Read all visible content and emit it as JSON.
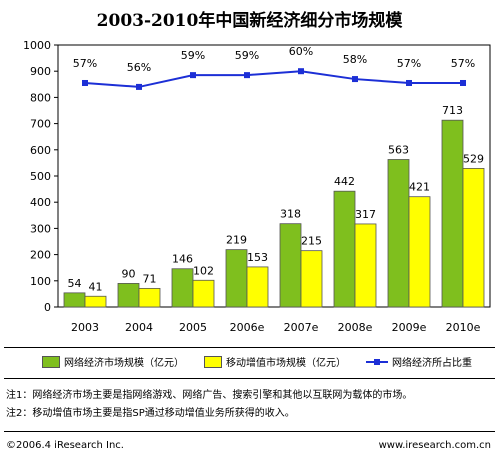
{
  "chart_data": {
    "type": "bar",
    "title": "2003-2010年中国新经济细分市场规模",
    "categories": [
      "2003",
      "2004",
      "2005",
      "2006e",
      "2007e",
      "2008e",
      "2009e",
      "2010e"
    ],
    "ylim": [
      0,
      1000
    ],
    "yticks": [
      0,
      100,
      200,
      300,
      400,
      500,
      600,
      700,
      800,
      900,
      1000
    ],
    "series": [
      {
        "name": "网络经济市场规模（亿元）",
        "kind": "bar",
        "color": "#7fbf1e",
        "values": [
          54,
          90,
          146,
          219,
          318,
          442,
          563,
          713
        ]
      },
      {
        "name": "移动增值市场规模（亿元）",
        "kind": "bar",
        "color": "#ffff00",
        "values": [
          41,
          71,
          102,
          153,
          215,
          317,
          421,
          529
        ]
      },
      {
        "name": "网络经济所占比重",
        "kind": "line",
        "color": "#1c2fd6",
        "values": [
          0.57,
          0.56,
          0.59,
          0.59,
          0.6,
          0.58,
          0.57,
          0.57
        ],
        "labels": [
          "57%",
          "56%",
          "59%",
          "59%",
          "60%",
          "58%",
          "57%",
          "57%"
        ]
      }
    ],
    "grid": false,
    "legend": "bottom"
  },
  "notes": [
    "注1：网络经济市场主要是指网络游戏、网络广告、搜索引擎和其他以互联网为载体的市场。",
    "注2：移动增值市场主要是指SP通过移动增值业务所获得的收入。"
  ],
  "footer": {
    "copyright": "©2006.4 iResearch Inc.",
    "url": "www.iresearch.com.cn"
  }
}
